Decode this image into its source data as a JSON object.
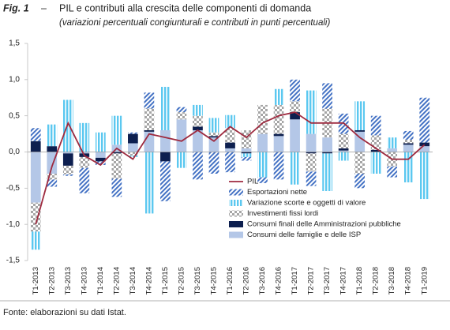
{
  "chart_data": {
    "type": "bar",
    "stacked": true,
    "figure_label": "Fig. 1",
    "title_separator": "–",
    "title": "PIL e contributi alla crescita delle componenti di domanda",
    "subtitle": "(variazioni percentuali congiunturali e contributi in punti percentuali)",
    "source": "Fonte: elaborazioni su dati Istat.",
    "categories": [
      "T1-2013",
      "T2-2013",
      "T3-2013",
      "T4-2013",
      "T1-2014",
      "T2-2014",
      "T3-2014",
      "T4-2014",
      "T1-2015",
      "T2-2015",
      "T3-2015",
      "T4-2015",
      "T1-2016",
      "T2-2016",
      "T3-2016",
      "T4-2016",
      "T1-2017",
      "T2-2017",
      "T3-2017",
      "T4-2017",
      "T1-2018",
      "T2-2018",
      "T3-2018",
      "T4-2018",
      "T1-2019"
    ],
    "series": [
      {
        "name": "Consumi delle famiglie e delle ISP",
        "color": "#b4c7e7",
        "pattern": "solid",
        "values": [
          -0.7,
          -0.3,
          -0.02,
          -0.02,
          -0.08,
          0.1,
          0.12,
          0.28,
          0.3,
          0.45,
          0.3,
          0.2,
          0.05,
          0.05,
          0.25,
          0.22,
          0.45,
          0.25,
          0.2,
          0.02,
          0.28,
          0.0,
          0.05,
          0.1,
          0.08
        ]
      },
      {
        "name": "Consumi finali delle Amministrazioni pubbliche",
        "color": "#0d1f4f",
        "pattern": "solid",
        "values": [
          0.15,
          0.08,
          -0.17,
          -0.05,
          -0.05,
          -0.02,
          0.13,
          0.02,
          -0.13,
          0.0,
          0.05,
          0.02,
          0.08,
          -0.02,
          0.0,
          0.03,
          0.1,
          -0.02,
          -0.02,
          0.03,
          0.02,
          0.03,
          0.0,
          0.02,
          0.05
        ]
      },
      {
        "name": "Investimenti fissi lordi",
        "color": "#a6a6a6",
        "pattern": "checker",
        "values": [
          -0.4,
          -0.08,
          -0.12,
          -0.15,
          0.0,
          -0.35,
          -0.05,
          0.3,
          0.0,
          0.1,
          0.15,
          0.05,
          0.2,
          0.25,
          0.4,
          0.4,
          0.15,
          -0.25,
          0.4,
          0.2,
          -0.3,
          0.2,
          -0.2,
          0.05,
          0.0
        ]
      },
      {
        "name": "Variazione scorte e oggetti di valore",
        "color": "#5bc8f0",
        "pattern": "vstripe",
        "values": [
          -0.25,
          0.3,
          0.72,
          0.4,
          0.27,
          0.4,
          -0.02,
          -0.85,
          0.6,
          -0.22,
          0.15,
          0.2,
          0.18,
          -0.05,
          -0.35,
          0.22,
          -0.45,
          0.6,
          -0.52,
          -0.12,
          0.4,
          -0.3,
          0.15,
          -0.42,
          -0.65
        ]
      },
      {
        "name": "Esportazioni nette",
        "color": "#4472c4",
        "pattern": "diagonal",
        "values": [
          0.18,
          -0.1,
          -0.02,
          -0.35,
          -0.05,
          -0.25,
          0.02,
          0.22,
          -0.55,
          0.07,
          -0.38,
          -0.3,
          -0.28,
          -0.05,
          -0.08,
          -0.38,
          0.3,
          -0.2,
          0.35,
          0.28,
          -0.2,
          0.27,
          -0.15,
          0.12,
          0.62
        ]
      },
      {
        "name": "PIL",
        "color": "#9e2a3f",
        "type": "line",
        "values": [
          -1.0,
          -0.2,
          0.4,
          -0.05,
          -0.18,
          0.05,
          -0.1,
          0.25,
          0.2,
          0.15,
          0.3,
          0.15,
          0.35,
          0.2,
          0.4,
          0.5,
          0.55,
          0.4,
          0.4,
          0.4,
          0.2,
          0.05,
          -0.1,
          -0.1,
          0.1
        ]
      }
    ],
    "ylim": [
      -1.5,
      1.5
    ],
    "yticks": [
      {
        "value": -1.5,
        "label": "-1,5"
      },
      {
        "value": -1.0,
        "label": "-1,0"
      },
      {
        "value": -0.5,
        "label": "-0,5"
      },
      {
        "value": 0,
        "label": "0,0"
      },
      {
        "value": 0.5,
        "label": "0,5"
      },
      {
        "value": 1.0,
        "label": "1,0"
      },
      {
        "value": 1.5,
        "label": "1,5"
      }
    ],
    "grid": false
  }
}
